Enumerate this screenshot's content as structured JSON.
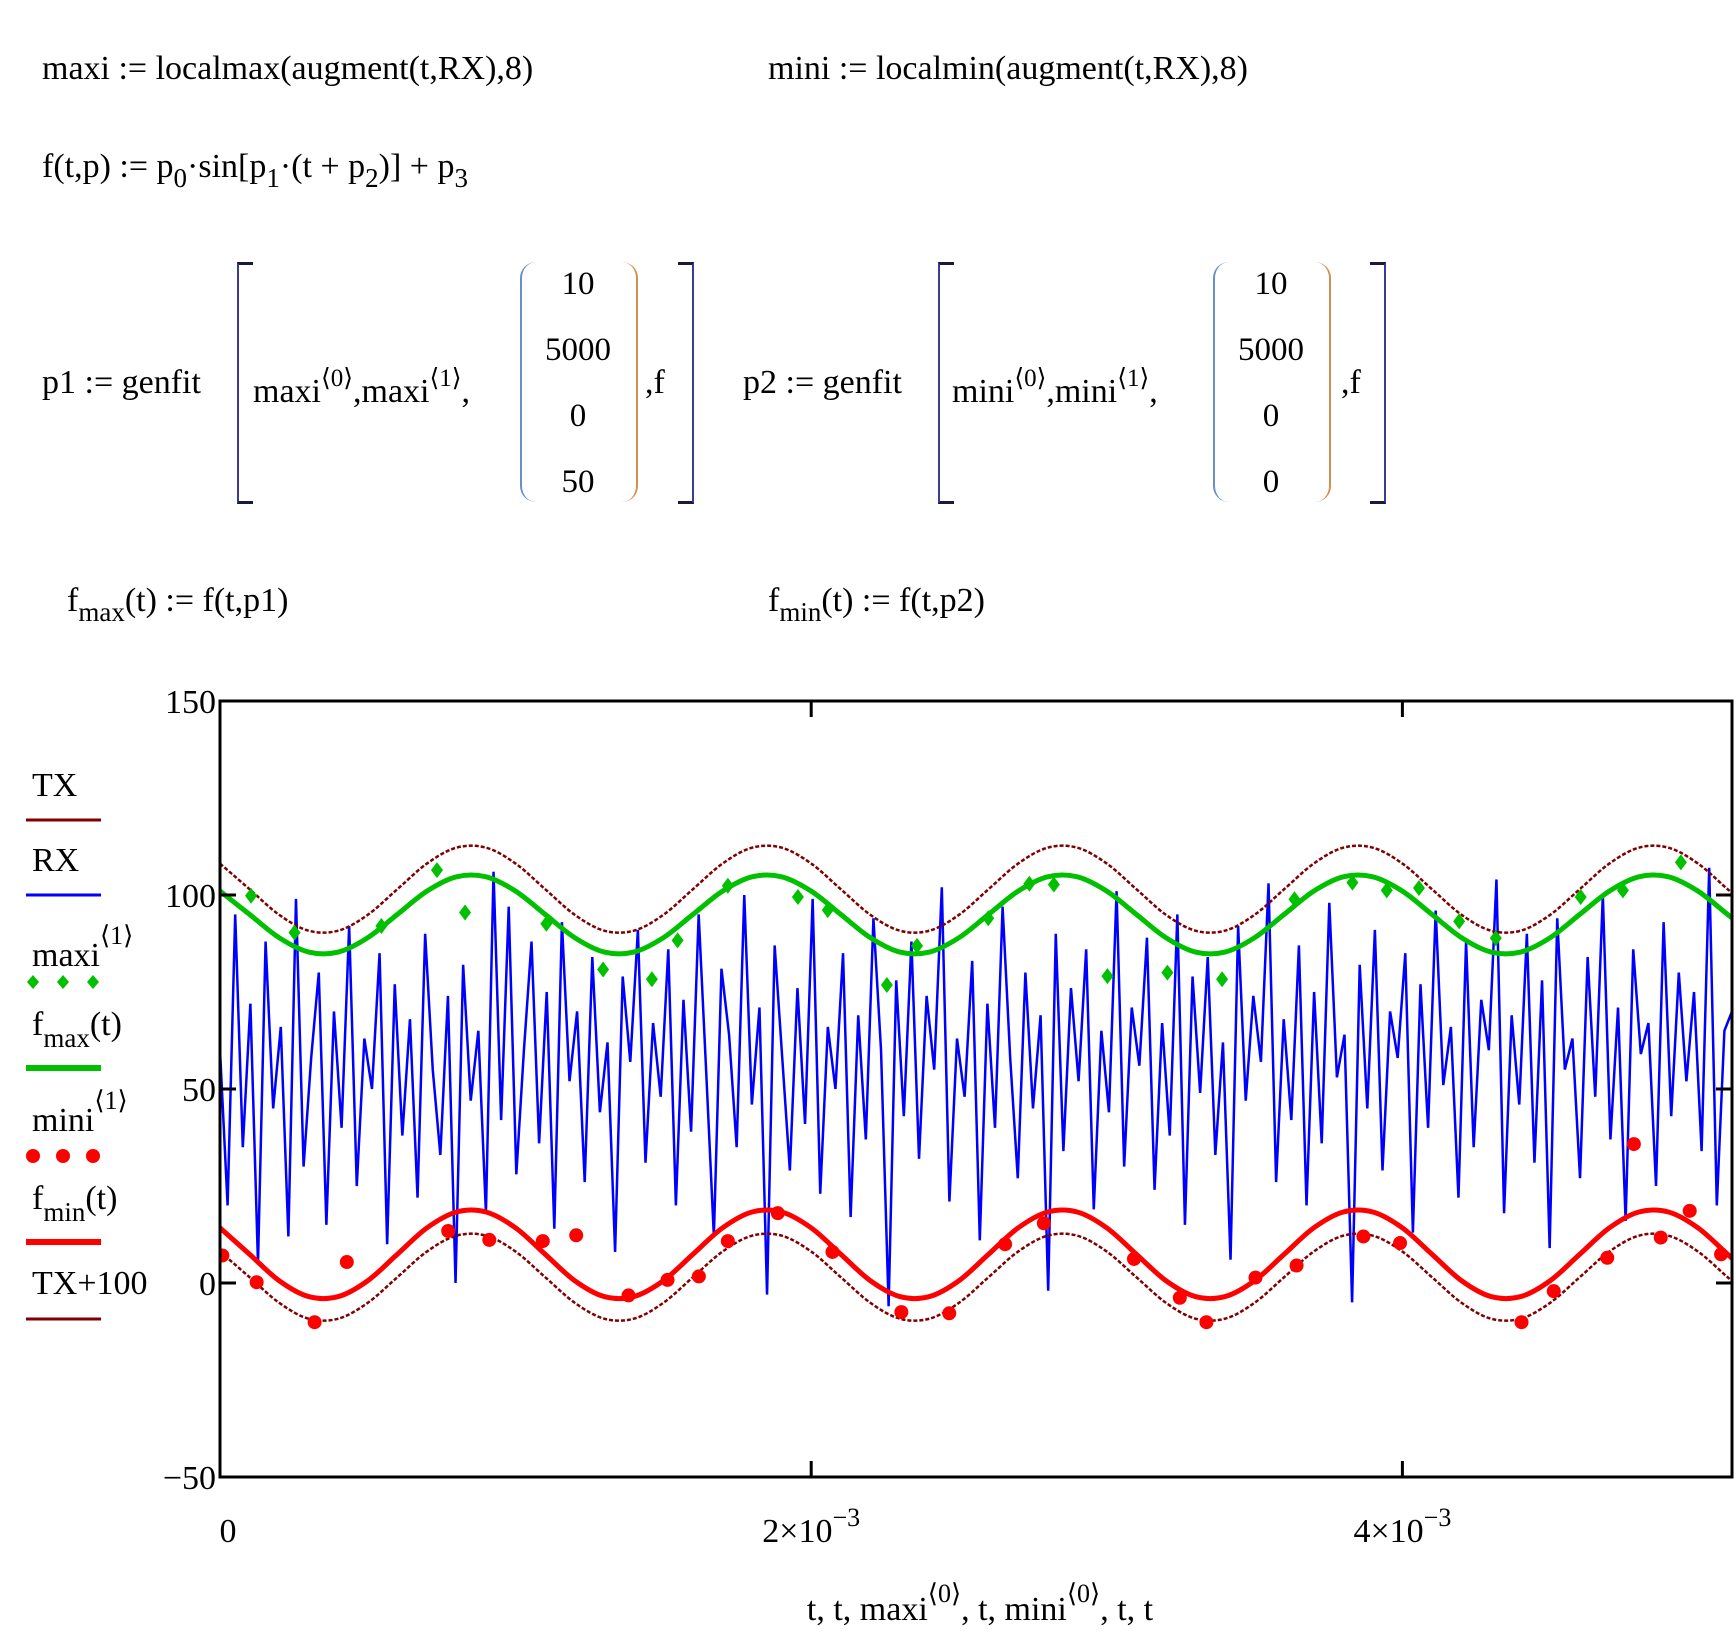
{
  "equations": {
    "maxi_def": "maxi := localmax(augment(t,RX),8)",
    "mini_def": "mini := localmin(augment(t,RX),8)",
    "f_def": {
      "a": "f(t,p) := p",
      "s0": "0",
      "b": "·sin",
      "c": "[p",
      "s1": "1",
      "d": "·(t + p",
      "s2": "2",
      "e": ")] + p",
      "s3": "3"
    },
    "genfit1": {
      "lhs": "p1 := genfit",
      "arg_a": "maxi",
      "sup_a": "⟨0⟩",
      "arg_b": ",maxi",
      "sup_b": "⟨1⟩",
      "comma": ",",
      "vector": [
        "10",
        "5000",
        "0",
        "50"
      ],
      "tail": ",f"
    },
    "genfit2": {
      "lhs": "p2 := genfit",
      "arg_a": "mini",
      "sup_a": "⟨0⟩",
      "arg_b": ",mini",
      "sup_b": "⟨1⟩",
      "comma": ",",
      "vector": [
        "10",
        "5000",
        "0",
        "0"
      ],
      "tail": ",f"
    },
    "fmax_def": {
      "f": "f",
      "sub": "max",
      "rest": "(t) := f(t,p1)"
    },
    "fmin_def": {
      "f": "f",
      "sub": "min",
      "rest": "(t) := f(t,p2)"
    }
  },
  "chart_data": {
    "type": "line",
    "xlabel": {
      "a": "t, t, maxi",
      "sup_a": "⟨0⟩",
      "b": ", t, mini",
      "sup_b": "⟨0⟩",
      "c": ", t, t"
    },
    "xlim": [
      0,
      0.005115
    ],
    "ylim": [
      -50,
      150
    ],
    "x_ticks": [
      {
        "value": 0,
        "label": "0"
      },
      {
        "value": 0.002,
        "mant": "2×10",
        "exp": "−3"
      },
      {
        "value": 0.004,
        "mant": "4×10",
        "exp": "−3"
      }
    ],
    "y_ticks": [
      {
        "value": 150,
        "label": "150"
      },
      {
        "value": 100,
        "label": "100"
      },
      {
        "value": 50,
        "label": "50"
      },
      {
        "value": 0,
        "label": "0"
      },
      {
        "value": -50,
        "label": "−50"
      }
    ],
    "grid": false,
    "legend_position": "left",
    "legend": [
      {
        "label": "TX",
        "color": "#800000",
        "style": "thin-line"
      },
      {
        "label": "RX",
        "color": "#0000ff",
        "style": "thin-line"
      },
      {
        "label": "maxi",
        "sup": "⟨1⟩",
        "color": "#00c000",
        "style": "diamond-points"
      },
      {
        "label": "f",
        "sub": "max",
        "rest": "(t)",
        "color": "#00c000",
        "style": "thick-line"
      },
      {
        "label": "mini",
        "sup": "⟨1⟩",
        "color": "#ff0000",
        "style": "dot-points"
      },
      {
        "label": "f",
        "sub": "min",
        "rest": "(t)",
        "color": "#ff0000",
        "style": "thick-line"
      },
      {
        "label": "TX+100",
        "color": "#800000",
        "style": "thin-line"
      }
    ],
    "curve_t": [
      0,
      0.0001,
      0.0002,
      0.0003,
      0.0004,
      0.0005,
      0.0006,
      0.0007,
      0.0008,
      0.0009,
      0.001,
      0.0011,
      0.0012,
      0.0013,
      0.0014,
      0.0015,
      0.0016,
      0.0017,
      0.0018,
      0.0019,
      0.002,
      0.0021,
      0.0022,
      0.0023,
      0.0024,
      0.0025,
      0.0026,
      0.0027,
      0.0028,
      0.0029,
      0.003,
      0.0031,
      0.0032,
      0.0033,
      0.0034,
      0.0035,
      0.0036,
      0.0037,
      0.0038,
      0.0039,
      0.004,
      0.0041,
      0.0042,
      0.0043,
      0.0044,
      0.0045,
      0.0046,
      0.0047,
      0.0048,
      0.0049,
      0.005,
      0.0051,
      0.0052
    ],
    "series": {
      "TX": {
        "color": "#800000",
        "cycle": [
          8.1,
          1.5,
          -5.1,
          -9.2,
          -9.2,
          -5.1,
          1.5,
          8.1,
          12.2,
          12.2
        ]
      },
      "TX+100": {
        "color": "#800000",
        "cycle": [
          108.1,
          101.5,
          94.9,
          90.8,
          90.8,
          94.9,
          101.5,
          108.1,
          112.2,
          112.2
        ]
      },
      "fmax": {
        "color": "#00c000",
        "cycle": [
          101.0,
          95.0,
          89.0,
          85.3,
          85.3,
          89.0,
          95.0,
          101.0,
          104.7,
          104.7
        ]
      },
      "fmin": {
        "color": "#ff0000",
        "cycle": [
          14.2,
          7.4,
          0.6,
          -3.5,
          -3.5,
          0.6,
          7.4,
          14.2,
          18.3,
          18.3
        ]
      }
    },
    "RX": {
      "color": "#0000ff",
      "t_range": [
        0,
        0.005115
      ],
      "values": [
        60,
        20,
        95,
        35,
        72,
        5,
        88,
        45,
        66,
        12,
        99,
        30,
        58,
        80,
        15,
        70,
        40,
        92,
        25,
        63,
        50,
        85,
        10,
        77,
        38,
        68,
        22,
        90,
        55,
        33,
        74,
        0,
        82,
        47,
        65,
        18,
        106,
        42,
        97,
        28,
        60,
        88,
        36,
        75,
        14,
        93,
        52,
        70,
        26,
        84,
        44,
        62,
        8,
        79,
        57,
        91,
        31,
        67,
        48,
        86,
        20,
        73,
        39,
        95,
        54,
        12,
        81,
        64,
        35,
        100,
        46,
        71,
        -3,
        87,
        58,
        29,
        76,
        41,
        99,
        23,
        66,
        50,
        85,
        17,
        69,
        37,
        94,
        60,
        -6,
        78,
        43,
        88,
        32,
        74,
        55,
        102,
        21,
        63,
        48,
        83,
        11,
        72,
        40,
        97,
        58,
        27,
        80,
        45,
        69,
        -2,
        90,
        34,
        76,
        52,
        86,
        19,
        65,
        44,
        101,
        30,
        71,
        56,
        89,
        24,
        67,
        38,
        95,
        15,
        79,
        49,
        84,
        33,
        62,
        6,
        92,
        47,
        74,
        57,
        103,
        26,
        68,
        42,
        87,
        20,
        75,
        36,
        98,
        53,
        64,
        -5,
        82,
        45,
        91,
        29,
        70,
        58,
        85,
        13,
        77,
        40,
        96,
        51,
        66,
        22,
        88,
        35,
        73,
        60,
        104,
        18,
        69,
        46,
        90,
        31,
        78,
        9,
        94,
        55,
        63,
        27,
        84,
        48,
        100,
        37,
        71,
        16,
        86,
        59,
        67,
        25,
        93,
        43,
        80,
        52,
        75,
        34,
        107,
        20,
        65,
        70
      ]
    },
    "maxi": {
      "color": "#00c000",
      "t": [
        0.000105,
        0.000252,
        0.000546,
        0.000734,
        0.000829,
        0.001104,
        0.001296,
        0.001461,
        0.001548,
        0.001718,
        0.001955,
        0.002056,
        0.002256,
        0.002358,
        0.002599,
        0.002738,
        0.002821,
        0.003002,
        0.003205,
        0.00339,
        0.003635,
        0.003831,
        0.003947,
        0.004056,
        0.004192,
        0.004316,
        0.004603,
        0.004746,
        0.004942
      ],
      "y": [
        99.8,
        90.3,
        92.0,
        106.4,
        95.5,
        92.6,
        80.8,
        78.3,
        88.3,
        102.4,
        99.5,
        96.1,
        76.8,
        86.9,
        94.0,
        102.9,
        102.7,
        79.1,
        80.0,
        78.3,
        98.9,
        103.2,
        101.2,
        101.8,
        93.2,
        88.9,
        99.5,
        101.2,
        108.4
      ]
    },
    "mini": {
      "color": "#ff0000",
      "t": [
        8e-06,
        0.000124,
        0.00032,
        0.000429,
        0.000772,
        0.000911,
        0.001092,
        0.001205,
        0.001382,
        0.001514,
        0.00162,
        0.001718,
        0.001887,
        0.002072,
        0.002305,
        0.002467,
        0.002656,
        0.002787,
        0.003092,
        0.003247,
        0.003337,
        0.003503,
        0.003642,
        0.003868,
        0.003992,
        0.004403,
        0.004512,
        0.004693,
        0.004783,
        0.004874,
        0.004972,
        0.005078
      ],
      "y": [
        7.1,
        0.2,
        -10.1,
        5.4,
        13.4,
        11.1,
        10.8,
        12.3,
        -3.2,
        0.8,
        1.7,
        10.8,
        18.0,
        8.0,
        -7.5,
        -7.8,
        10.0,
        15.4,
        6.2,
        -3.8,
        -10.1,
        1.4,
        4.5,
        12.0,
        10.3,
        -10.1,
        -2.1,
        6.5,
        35.8,
        11.7,
        18.6,
        7.4
      ]
    }
  }
}
